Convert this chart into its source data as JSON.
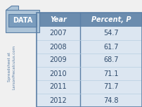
{
  "years": [
    "2007",
    "2008",
    "2009",
    "2010",
    "2011",
    "2012"
  ],
  "percents": [
    "54.7",
    "61.7",
    "68.7",
    "71.1",
    "71.7",
    "74.8"
  ],
  "col1_header": "Year",
  "col2_header": "Percent, P",
  "header_bg": "#6b8cae",
  "header_text_color": "#ffffff",
  "row_bg": "#dce6f1",
  "row_text_color": "#2e4a6b",
  "data_label": "DATA",
  "data_badge_bg": "#7a9cbd",
  "data_folder_bg": "#adc4d8",
  "side_text_line1": "Spreadsheet at",
  "side_text_line2": "LarsonPrecalculus.com",
  "side_text_color": "#5b7fa6",
  "border_color": "#5b7fa6",
  "fig_bg": "#f0f0f0"
}
